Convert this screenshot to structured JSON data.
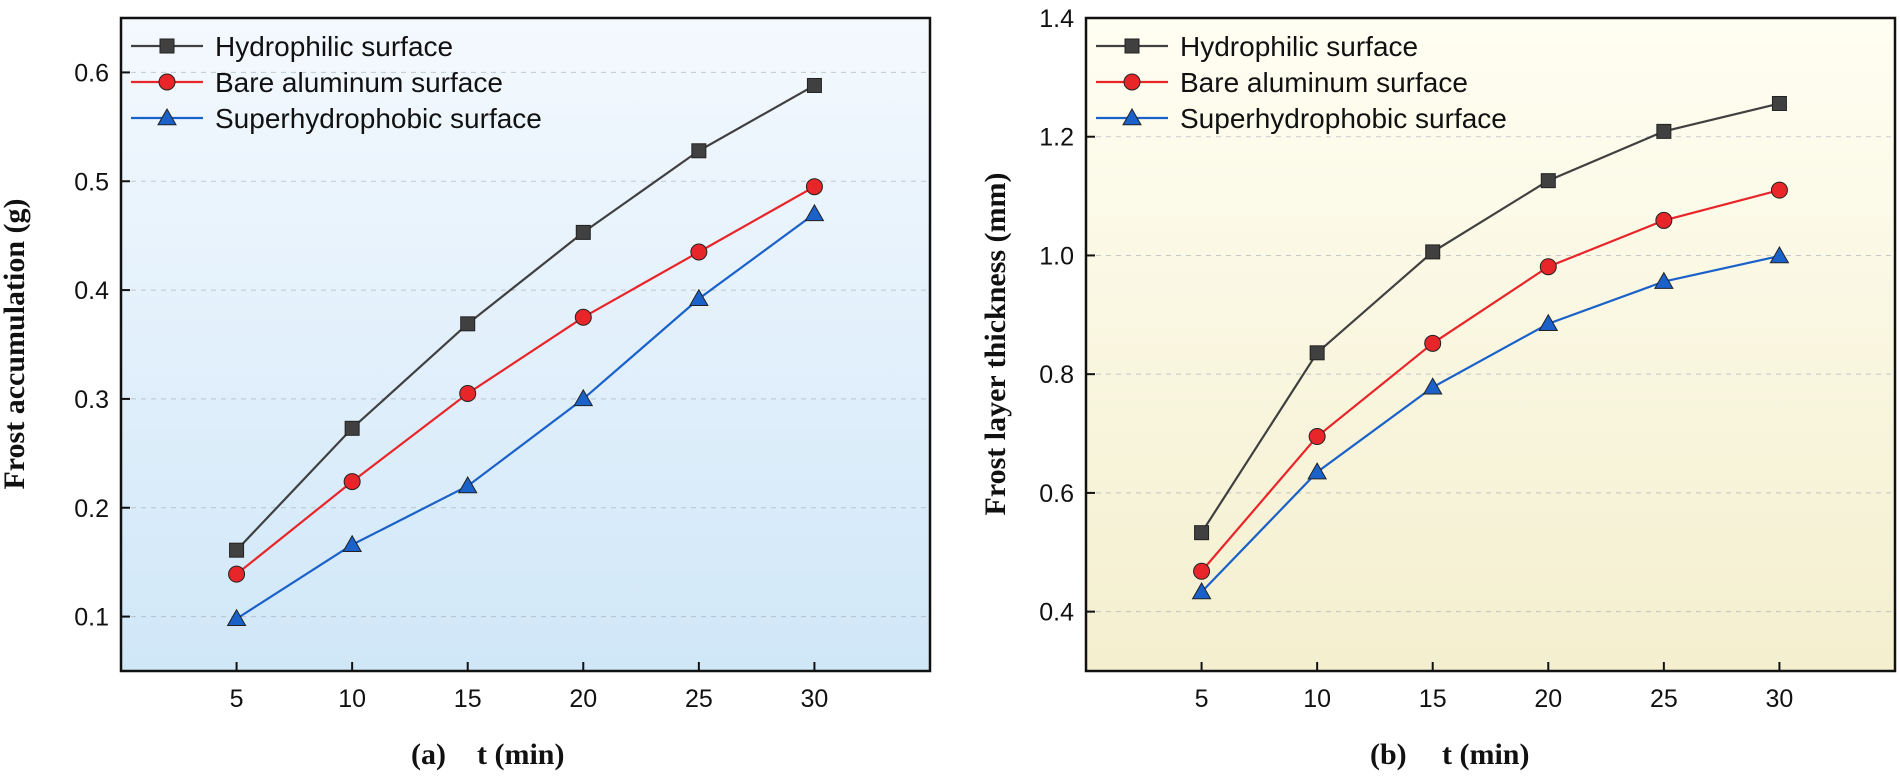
{
  "colors": {
    "hydrophilic": "#404040",
    "bare": "#e8262a",
    "superhydrophobic": "#1a61c9",
    "panel_a_bg_top": "#f4f9fe",
    "panel_a_bg_bottom": "#d0e7f8",
    "panel_b_bg_top": "#fffef2",
    "panel_b_bg_bottom": "#f4efcf"
  },
  "chart_data": [
    {
      "type": "line",
      "panel_label": "(a)",
      "xlabel": "t (min)",
      "ylabel": "Frost accumulation (g)",
      "x": [
        5,
        10,
        15,
        20,
        25,
        30
      ],
      "xlim": [
        0,
        35
      ],
      "ylim": [
        0.05,
        0.65
      ],
      "xticks": [
        "5",
        "10",
        "15",
        "20",
        "25",
        "30"
      ],
      "yticks": [
        "0.1",
        "0.2",
        "0.3",
        "0.4",
        "0.5",
        "0.6"
      ],
      "grid": "horizontal dashed",
      "legend": "top-left",
      "series": [
        {
          "name": "Hydrophilic surface",
          "marker": "square",
          "color_key": "hydrophilic",
          "values": [
            0.161,
            0.273,
            0.369,
            0.453,
            0.528,
            0.588
          ]
        },
        {
          "name": "Bare aluminum surface",
          "marker": "circle",
          "color_key": "bare",
          "values": [
            0.139,
            0.224,
            0.305,
            0.375,
            0.435,
            0.495
          ]
        },
        {
          "name": "Superhydrophobic surface",
          "marker": "triangle",
          "color_key": "superhydrophobic",
          "values": [
            0.098,
            0.166,
            0.22,
            0.3,
            0.392,
            0.47
          ]
        }
      ]
    },
    {
      "type": "line",
      "panel_label": "(b)",
      "xlabel": "t (min)",
      "ylabel": "Frost layer thickness (mm)",
      "x": [
        5,
        10,
        15,
        20,
        25,
        30
      ],
      "xlim": [
        0,
        35
      ],
      "ylim": [
        0.3,
        1.4
      ],
      "xticks": [
        "5",
        "10",
        "15",
        "20",
        "25",
        "30"
      ],
      "yticks": [
        "0.4",
        "0.6",
        "0.8",
        "1.0",
        "1.2",
        "1.4"
      ],
      "grid": "horizontal dashed",
      "legend": "top-left",
      "series": [
        {
          "name": "Hydrophilic surface",
          "marker": "square",
          "color_key": "hydrophilic",
          "values": [
            0.533,
            0.836,
            1.006,
            1.126,
            1.209,
            1.256
          ]
        },
        {
          "name": "Bare aluminum surface",
          "marker": "circle",
          "color_key": "bare",
          "values": [
            0.468,
            0.695,
            0.852,
            0.981,
            1.059,
            1.11
          ]
        },
        {
          "name": "Superhydrophobic surface",
          "marker": "triangle",
          "color_key": "superhydrophobic",
          "values": [
            0.433,
            0.635,
            0.778,
            0.885,
            0.956,
            0.999
          ]
        }
      ]
    }
  ]
}
